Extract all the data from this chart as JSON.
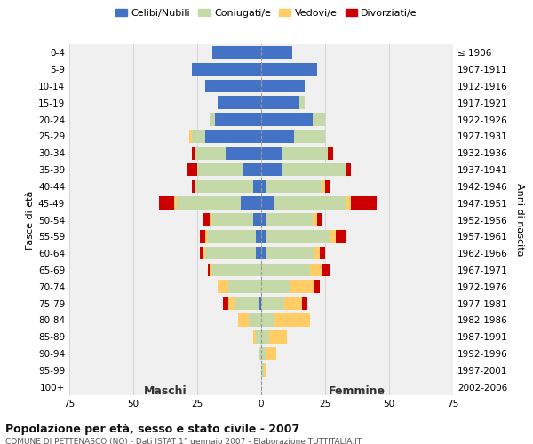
{
  "age_groups": [
    "0-4",
    "5-9",
    "10-14",
    "15-19",
    "20-24",
    "25-29",
    "30-34",
    "35-39",
    "40-44",
    "45-49",
    "50-54",
    "55-59",
    "60-64",
    "65-69",
    "70-74",
    "75-79",
    "80-84",
    "85-89",
    "90-94",
    "95-99",
    "100+"
  ],
  "birth_years": [
    "2002-2006",
    "1997-2001",
    "1992-1996",
    "1987-1991",
    "1982-1986",
    "1977-1981",
    "1972-1976",
    "1967-1971",
    "1962-1966",
    "1957-1961",
    "1952-1956",
    "1947-1951",
    "1942-1946",
    "1937-1941",
    "1932-1936",
    "1927-1931",
    "1922-1926",
    "1917-1921",
    "1912-1916",
    "1907-1911",
    "≤ 1906"
  ],
  "male": {
    "celibe": [
      19,
      27,
      22,
      17,
      18,
      22,
      14,
      7,
      3,
      8,
      3,
      2,
      2,
      0,
      0,
      1,
      0,
      0,
      0,
      0,
      0
    ],
    "coniugato": [
      0,
      0,
      0,
      0,
      2,
      5,
      12,
      18,
      23,
      25,
      16,
      19,
      20,
      19,
      13,
      9,
      5,
      2,
      1,
      0,
      0
    ],
    "vedovo": [
      0,
      0,
      0,
      0,
      0,
      1,
      0,
      0,
      0,
      1,
      1,
      1,
      1,
      1,
      4,
      3,
      4,
      1,
      0,
      0,
      0
    ],
    "divorziato": [
      0,
      0,
      0,
      0,
      0,
      0,
      1,
      4,
      1,
      6,
      3,
      2,
      1,
      1,
      0,
      2,
      0,
      0,
      0,
      0,
      0
    ]
  },
  "female": {
    "nubile": [
      12,
      22,
      17,
      15,
      20,
      13,
      8,
      8,
      2,
      5,
      2,
      2,
      2,
      0,
      0,
      0,
      0,
      0,
      0,
      0,
      0
    ],
    "coniugata": [
      0,
      0,
      0,
      2,
      5,
      12,
      18,
      25,
      22,
      28,
      18,
      25,
      19,
      19,
      11,
      9,
      5,
      3,
      2,
      1,
      0
    ],
    "vedova": [
      0,
      0,
      0,
      0,
      0,
      0,
      0,
      0,
      1,
      2,
      2,
      2,
      2,
      5,
      10,
      7,
      14,
      7,
      4,
      1,
      0
    ],
    "divorziata": [
      0,
      0,
      0,
      0,
      0,
      0,
      2,
      2,
      2,
      10,
      2,
      4,
      2,
      3,
      2,
      2,
      0,
      0,
      0,
      0,
      0
    ]
  },
  "colors": {
    "celibe": "#4472C4",
    "coniugato": "#C5D9A8",
    "vedovo": "#FFCC66",
    "divorziato": "#CC0000"
  },
  "title": "Popolazione per età, sesso e stato civile - 2007",
  "subtitle": "COMUNE DI PETTENASCO (NO) - Dati ISTAT 1° gennaio 2007 - Elaborazione TUTTITALIA.IT",
  "xlabel_left": "Maschi",
  "xlabel_right": "Femmine",
  "ylabel_left": "Fasce di età",
  "ylabel_right": "Anni di nascita",
  "xlim": 75,
  "legend_labels": [
    "Celibi/Nubili",
    "Coniugati/e",
    "Vedovi/e",
    "Divorziati/e"
  ],
  "bg_color": "#ffffff",
  "grid_color": "#cccccc"
}
